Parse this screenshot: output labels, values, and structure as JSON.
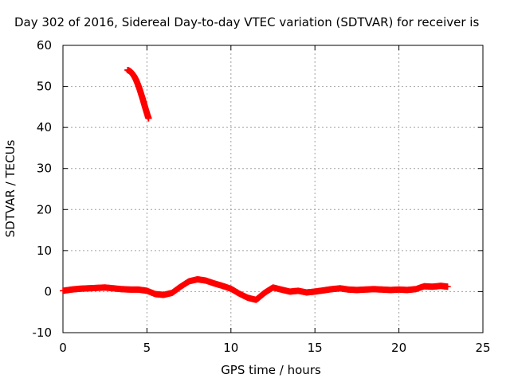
{
  "chart_data": {
    "type": "scatter",
    "title": "Day 302 of 2016, Sidereal Day-to-day VTEC variation (SDTVAR) for receiver is",
    "xlabel": "GPS time / hours",
    "ylabel": "SDTVAR / TECUs",
    "xlim": [
      0,
      25
    ],
    "ylim": [
      -10,
      60
    ],
    "xticks": [
      0,
      5,
      10,
      15,
      20,
      25
    ],
    "yticks": [
      -10,
      0,
      10,
      20,
      30,
      40,
      50,
      60
    ],
    "grid": true,
    "legend": "none",
    "marker": "plus",
    "color": "#ff0000",
    "series": [
      {
        "points": [
          [
            3.85,
            54.0
          ],
          [
            3.95,
            53.8
          ],
          [
            4.05,
            53.5
          ],
          [
            4.15,
            53.0
          ],
          [
            4.25,
            52.4
          ],
          [
            4.35,
            51.6
          ],
          [
            4.45,
            50.6
          ],
          [
            4.55,
            49.5
          ],
          [
            4.65,
            48.2
          ],
          [
            4.75,
            46.9
          ],
          [
            4.85,
            45.5
          ],
          [
            4.95,
            44.1
          ],
          [
            5.05,
            42.8
          ],
          [
            5.1,
            42.2
          ]
        ]
      },
      {
        "points": [
          [
            0.0,
            0.2
          ],
          [
            0.5,
            0.5
          ],
          [
            1.0,
            0.7
          ],
          [
            1.5,
            0.8
          ],
          [
            2.0,
            0.9
          ],
          [
            2.5,
            1.0
          ],
          [
            3.0,
            0.8
          ],
          [
            3.5,
            0.6
          ],
          [
            4.0,
            0.5
          ],
          [
            4.5,
            0.5
          ],
          [
            5.0,
            0.2
          ],
          [
            5.5,
            -0.6
          ],
          [
            6.0,
            -0.8
          ],
          [
            6.5,
            -0.3
          ],
          [
            7.0,
            1.2
          ],
          [
            7.5,
            2.5
          ],
          [
            8.0,
            3.0
          ],
          [
            8.5,
            2.7
          ],
          [
            9.0,
            2.0
          ],
          [
            9.5,
            1.4
          ],
          [
            10.0,
            0.7
          ],
          [
            10.5,
            -0.5
          ],
          [
            11.0,
            -1.5
          ],
          [
            11.5,
            -2.0
          ],
          [
            12.0,
            -0.3
          ],
          [
            12.5,
            1.0
          ],
          [
            13.0,
            0.5
          ],
          [
            13.5,
            0.0
          ],
          [
            14.0,
            0.2
          ],
          [
            14.5,
            -0.2
          ],
          [
            15.0,
            0.0
          ],
          [
            15.5,
            0.3
          ],
          [
            16.0,
            0.6
          ],
          [
            16.5,
            0.8
          ],
          [
            17.0,
            0.5
          ],
          [
            17.5,
            0.4
          ],
          [
            18.0,
            0.5
          ],
          [
            18.5,
            0.6
          ],
          [
            19.0,
            0.5
          ],
          [
            19.5,
            0.4
          ],
          [
            20.0,
            0.5
          ],
          [
            20.5,
            0.4
          ],
          [
            21.0,
            0.6
          ],
          [
            21.5,
            1.3
          ],
          [
            22.0,
            1.2
          ],
          [
            22.5,
            1.4
          ],
          [
            22.9,
            1.2
          ]
        ]
      }
    ]
  }
}
